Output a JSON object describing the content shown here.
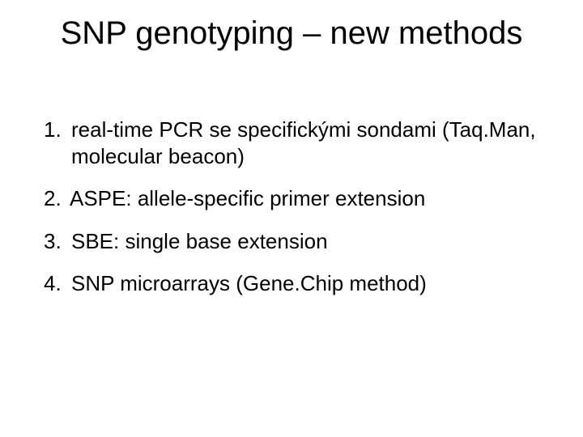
{
  "slide": {
    "title": "SNP genotyping – new methods",
    "title_font_family": "Comic Sans MS",
    "title_font_size_pt": 40,
    "title_color": "#000000",
    "body_font_family": "Arial",
    "body_font_size_pt": 26,
    "body_color": "#000000",
    "background_color": "#ffffff",
    "items": [
      {
        "number": "1.",
        "text": "real-time PCR se specifickými sondami (Taq.Man, molecular beacon)"
      },
      {
        "number": "2.",
        "text": "ASPE: allele-specific primer extension"
      },
      {
        "number": "3.",
        "text": "SBE: single base extension"
      },
      {
        "number": "4.",
        "text": "SNP microarrays (Gene.Chip method)"
      }
    ]
  }
}
